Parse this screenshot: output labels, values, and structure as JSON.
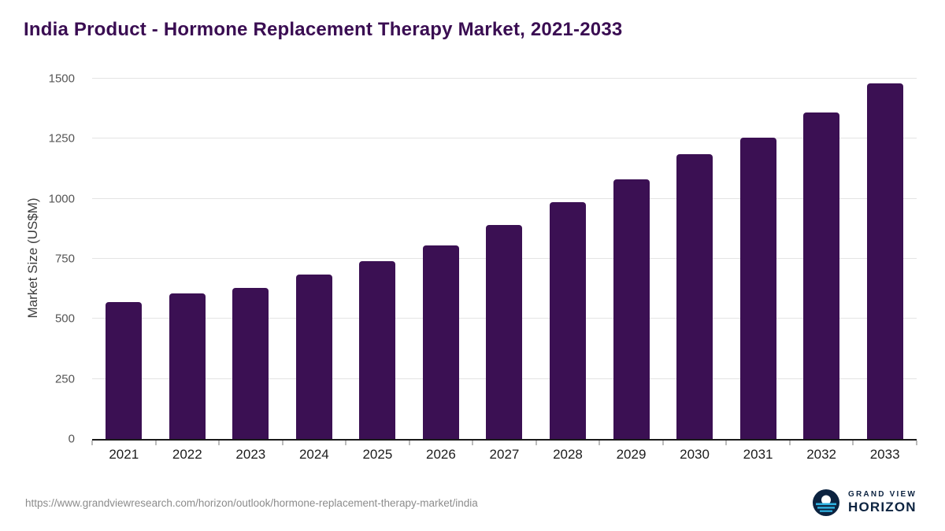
{
  "title": "India Product - Hormone Replacement Therapy Market, 2021-2033",
  "chart_data": {
    "type": "bar",
    "categories": [
      "2021",
      "2022",
      "2023",
      "2024",
      "2025",
      "2026",
      "2027",
      "2028",
      "2029",
      "2030",
      "2031",
      "2032",
      "2033"
    ],
    "values": [
      570,
      605,
      630,
      685,
      740,
      805,
      890,
      985,
      1080,
      1185,
      1255,
      1360,
      1480
    ],
    "title": "India Product - Hormone Replacement Therapy Market, 2021-2033",
    "xlabel": "",
    "ylabel": "Market Size (US$M)",
    "ylim": [
      0,
      1500
    ],
    "yticks": [
      0,
      250,
      500,
      750,
      1000,
      1250,
      1500
    ],
    "grid": true,
    "legend": "none",
    "bar_color": "#3b1053"
  },
  "footer": {
    "source_url": "https://www.grandviewresearch.com/horizon/outlook/hormone-replacement-therapy-market/india",
    "logo": {
      "line1": "GRAND VIEW",
      "line2": "HORIZON"
    }
  },
  "colors": {
    "bar": "#3b1053",
    "title": "#3a0d52",
    "axis": "#1a1a1a",
    "grid": "#e4e4e4",
    "tick_label": "#555555",
    "x_label": "#1c1c1c",
    "url": "#8c8c8c",
    "logo_navy": "#0c2340",
    "logo_cyan": "#2fb3e3"
  }
}
